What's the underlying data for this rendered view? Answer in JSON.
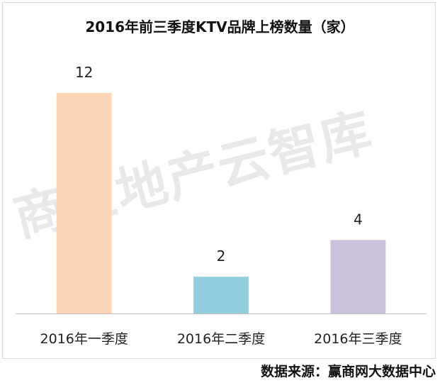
{
  "chart_data": {
    "type": "bar",
    "title": "2016年前三季度KTV品牌上榜数量（家）",
    "categories": [
      "2016年一季度",
      "2016年二季度",
      "2016年三季度"
    ],
    "values": [
      12,
      2,
      4
    ],
    "colors": [
      "#fbd5b5",
      "#93cddd",
      "#ccc1da"
    ],
    "ylim": [
      0,
      12
    ],
    "grid": false,
    "legend": "none",
    "xlabel": "",
    "ylabel": ""
  },
  "watermark": "商业地产云智库",
  "source": "数据来源：赢商网大数据中心"
}
